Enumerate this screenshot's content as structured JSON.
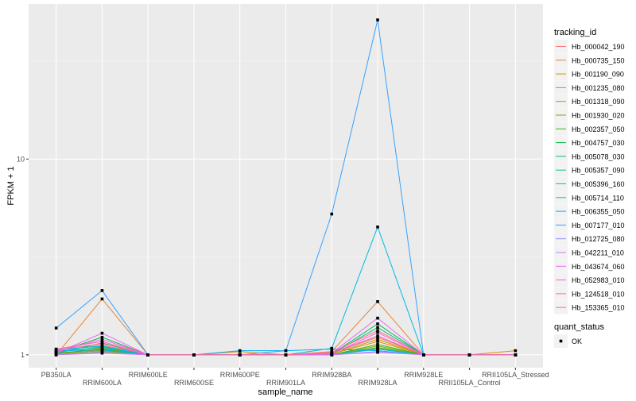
{
  "chart_data": {
    "type": "line",
    "title": "",
    "xlabel": "sample_name",
    "ylabel": "FPKM + 1",
    "yscale": "log10",
    "ylim": [
      0.86,
      62
    ],
    "yticks": [
      1,
      10
    ],
    "ytick_labels": [
      "1",
      "10"
    ],
    "grid": true,
    "legend_placement": "right",
    "categories": [
      "PB350LA",
      "RRIM600LA",
      "RRIM600LE",
      "RRIM600SE",
      "RRIM600PE",
      "RRIM901LA",
      "RRIM928BA",
      "RRIM928LA",
      "RRIM928LE",
      "RRII105LA_Control",
      "RRII105LA_Stressed"
    ],
    "legend_title": "tracking_id",
    "shape_legend": {
      "title": "quant_status",
      "entries": [
        "OK"
      ]
    },
    "series": [
      {
        "name": "Hb_000042_190",
        "color": "#F8766D",
        "values": [
          1.05,
          1.12,
          1,
          1,
          1,
          1,
          1.02,
          1.23,
          1,
          1,
          1
        ]
      },
      {
        "name": "Hb_000735_150",
        "color": "#EA8331",
        "values": [
          1.0,
          1.93,
          1,
          1,
          1,
          1,
          1.04,
          1.87,
          1,
          1,
          1
        ]
      },
      {
        "name": "Hb_001190_090",
        "color": "#D89000",
        "values": [
          1.02,
          1.06,
          1,
          1,
          1.04,
          1,
          1.01,
          1.17,
          1,
          1,
          1.05
        ]
      },
      {
        "name": "Hb_001235_080",
        "color": "#C09B00",
        "values": [
          1.01,
          1.08,
          1,
          1,
          1,
          1,
          1.01,
          1.2,
          1,
          1,
          1
        ]
      },
      {
        "name": "Hb_001318_090",
        "color": "#A3A500",
        "values": [
          1.0,
          1.04,
          1,
          1,
          1,
          1,
          1,
          1.09,
          1,
          1,
          1
        ]
      },
      {
        "name": "Hb_001930_020",
        "color": "#7CAE00",
        "values": [
          1.01,
          1.05,
          1,
          1,
          1,
          1,
          1,
          1.11,
          1,
          1,
          1
        ]
      },
      {
        "name": "Hb_002357_050",
        "color": "#39B600",
        "values": [
          1.02,
          1.07,
          1,
          1,
          1,
          1,
          1,
          1.13,
          1,
          1,
          1
        ]
      },
      {
        "name": "Hb_004757_030",
        "color": "#00BB4E",
        "values": [
          1.03,
          1.23,
          1,
          1,
          1,
          1,
          1.01,
          1.44,
          1,
          1,
          1
        ]
      },
      {
        "name": "Hb_005078_030",
        "color": "#00BF7D",
        "values": [
          1.02,
          1.15,
          1,
          1,
          1,
          1,
          1.01,
          1.38,
          1,
          1,
          1
        ]
      },
      {
        "name": "Hb_005357_090",
        "color": "#00C1A3",
        "values": [
          1.04,
          1.09,
          1,
          1,
          1,
          1,
          1,
          1.07,
          1,
          1,
          1
        ]
      },
      {
        "name": "Hb_005396_160",
        "color": "#00BFC4",
        "values": [
          1.03,
          1.1,
          1,
          1,
          1,
          1,
          1,
          1.08,
          1,
          1,
          1
        ]
      },
      {
        "name": "Hb_005714_110",
        "color": "#00BAE0",
        "values": [
          1.06,
          1.11,
          1,
          1,
          1,
          1,
          1.08,
          4.5,
          1,
          1,
          1
        ]
      },
      {
        "name": "Hb_006355_050",
        "color": "#00B0F6",
        "values": [
          1.05,
          1.06,
          1,
          1,
          1.05,
          1.05,
          1.07,
          1.05,
          1,
          1,
          1
        ]
      },
      {
        "name": "Hb_007177_010",
        "color": "#35A2FF",
        "values": [
          1.37,
          2.13,
          1,
          1,
          1,
          1.05,
          5.24,
          51.4,
          1,
          1,
          1
        ]
      },
      {
        "name": "Hb_012725_080",
        "color": "#9590FF",
        "values": [
          1.01,
          1.03,
          1,
          1,
          1,
          1,
          1,
          1.04,
          1,
          1,
          1
        ]
      },
      {
        "name": "Hb_042211_010",
        "color": "#C77CFF",
        "values": [
          1.0,
          1.02,
          1,
          1,
          1,
          1,
          1,
          1.03,
          1,
          1,
          1
        ]
      },
      {
        "name": "Hb_043674_060",
        "color": "#E76BF3",
        "values": [
          1.02,
          1.29,
          1,
          1,
          1,
          1,
          1.02,
          1.54,
          1,
          1,
          1
        ]
      },
      {
        "name": "Hb_052983_010",
        "color": "#FA62DB",
        "values": [
          1.04,
          1.2,
          1,
          1,
          1,
          1,
          1.01,
          1.3,
          1,
          1,
          1
        ]
      },
      {
        "name": "Hb_124518_010",
        "color": "#FF62BC",
        "values": [
          1.07,
          1.17,
          1,
          1,
          1,
          1,
          1.02,
          1.25,
          1,
          1,
          1
        ]
      },
      {
        "name": "Hb_153365_010",
        "color": "#FF6C91",
        "values": [
          1.06,
          1.14,
          1,
          1,
          1,
          1,
          1.03,
          1.33,
          1,
          1,
          1
        ]
      }
    ]
  }
}
